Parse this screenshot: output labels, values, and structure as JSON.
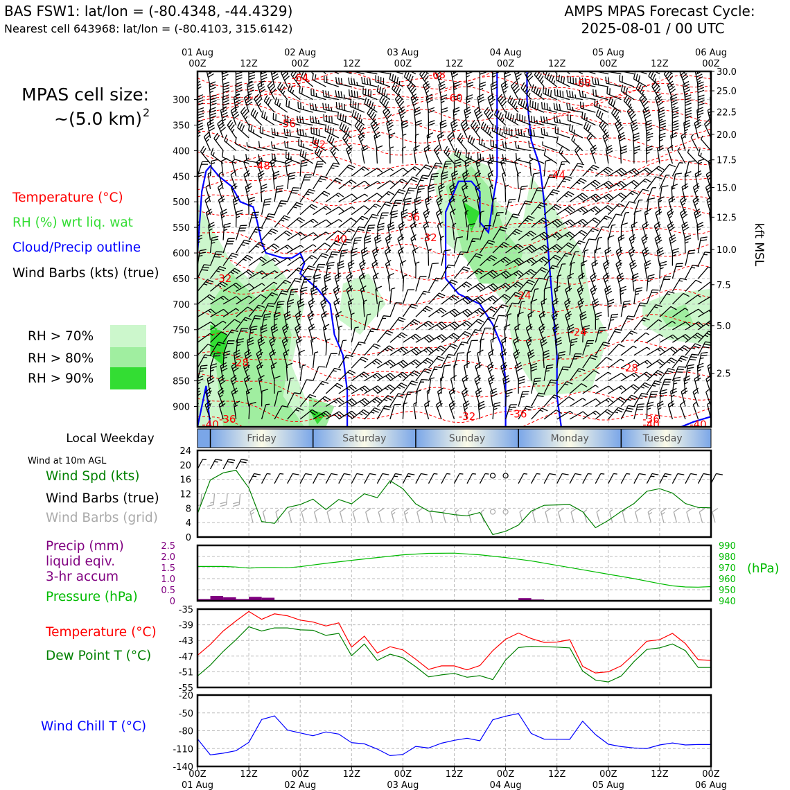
{
  "header": {
    "station_line": "BAS FSW1: lat/lon = (-80.4348, -44.4329)",
    "cell_line": "Nearest cell 643968: lat/lon = (-80.4103, 315.6142)",
    "cycle_title": "AMPS MPAS Forecast Cycle:",
    "cycle_time": "2025-08-01 / 00 UTC"
  },
  "left_panel": {
    "cell_size_label": "MPAS cell size:",
    "cell_size_value": "~(5.0 km)",
    "cell_size_exp": "2",
    "legend": [
      {
        "text": "Temperature (°C)",
        "color": "#ff0000"
      },
      {
        "text": "RH (%) wrt liq. wat",
        "color": "#33dd33"
      },
      {
        "text": "Cloud/Precip outline",
        "color": "#0000ff"
      },
      {
        "text": "Wind Barbs (kts) (true)",
        "color": "#000000"
      }
    ],
    "rh_keys": [
      {
        "text": "RH > 70%",
        "color": "#ccf7cc"
      },
      {
        "text": "RH > 80%",
        "color": "#a0eea0"
      },
      {
        "text": "RH > 90%",
        "color": "#33dd33"
      }
    ]
  },
  "colors": {
    "temperature": "#ff0000",
    "dewpoint": "#008000",
    "wind_speed": "#008000",
    "pressure": "#00bb00",
    "precip": "#800080",
    "wind_chill": "#0000ff",
    "cloud_outline": "#0000ff",
    "grid_barbs": "#aaaaaa"
  },
  "time_axis": {
    "top_dates": [
      "01 Aug",
      "02 Aug",
      "03 Aug",
      "04 Aug",
      "05 Aug",
      "06 Aug"
    ],
    "ticks": [
      "00Z",
      "12Z",
      "00Z",
      "12Z",
      "00Z",
      "12Z",
      "00Z",
      "12Z",
      "00Z",
      "12Z",
      "00Z"
    ],
    "bottom_dates": [
      "01 Aug",
      "02 Aug",
      "03 Aug",
      "04 Aug",
      "05 Aug",
      "06 Aug"
    ]
  },
  "weekday": {
    "label": "Local Weekday",
    "days": [
      "Friday",
      "Saturday",
      "Sunday",
      "Monday",
      "Tuesday"
    ]
  },
  "wind_panel": {
    "title": "Wind at 10m AGL",
    "labels": [
      {
        "text": "Wind Spd (kts)",
        "color": "#008000"
      },
      {
        "text": "Wind Barbs (true)",
        "color": "#000000"
      },
      {
        "text": "Wind Barbs (grid)",
        "color": "#aaaaaa"
      }
    ]
  },
  "precip_panel": {
    "labels": [
      {
        "text": "Precip (mm)",
        "color": "#800080"
      },
      {
        "text": "liquid eqiv.",
        "color": "#800080"
      },
      {
        "text": "3-hr accum",
        "color": "#800080"
      },
      {
        "text": "Pressure (hPa)",
        "color": "#00bb00"
      }
    ],
    "right_unit": "(hPa)"
  },
  "temp_panel": {
    "labels": [
      {
        "text": "Temperature (°C)",
        "color": "#ff0000"
      },
      {
        "text": "Dew Point T (°C)",
        "color": "#008000"
      }
    ]
  },
  "chill_panel": {
    "labels": [
      {
        "text": "Wind Chill T (°C)",
        "color": "#0000ff"
      }
    ]
  },
  "chart_data": [
    {
      "type": "heatmap",
      "name": "upper-air time-height",
      "x_hours": [
        0,
        120
      ],
      "pressure_ticks": [
        300,
        350,
        400,
        450,
        500,
        550,
        600,
        650,
        700,
        750,
        800,
        850,
        900
      ],
      "ylim": [
        940,
        245
      ],
      "right_axis_label": "kft MSL",
      "kft_ticks": [
        {
          "label": "30.0",
          "p": 245
        },
        {
          "label": "25.0",
          "p": 283
        },
        {
          "label": "22.5",
          "p": 324
        },
        {
          "label": "20.0",
          "p": 368
        },
        {
          "label": "17.5",
          "p": 418
        },
        {
          "label": "15.0",
          "p": 472
        },
        {
          "label": "12.5",
          "p": 530
        },
        {
          "label": "10.0",
          "p": 593
        },
        {
          "label": "7.5",
          "p": 662
        },
        {
          "label": "5.0",
          "p": 742
        },
        {
          "label": "2.5",
          "p": 835
        }
      ],
      "temp_labels": [
        {
          "text": "-64",
          "h": 24,
          "p": 258
        },
        {
          "text": "-68",
          "h": 56,
          "p": 252
        },
        {
          "text": "-60",
          "h": 60,
          "p": 297
        },
        {
          "text": "-68",
          "h": 90,
          "p": 268
        },
        {
          "text": "-56",
          "h": 21,
          "p": 347
        },
        {
          "text": "-52",
          "h": 28,
          "p": 388
        },
        {
          "text": "-48",
          "h": 15,
          "p": 430
        },
        {
          "text": "-44",
          "h": 84,
          "p": 448
        },
        {
          "text": "-36",
          "h": 50,
          "p": 530
        },
        {
          "text": "-40",
          "h": 33,
          "p": 573
        },
        {
          "text": "-32",
          "h": 54,
          "p": 570
        },
        {
          "text": "-32",
          "h": 6,
          "p": 650
        },
        {
          "text": "-24",
          "h": 76,
          "p": 683
        },
        {
          "text": "-24",
          "h": 89,
          "p": 755
        },
        {
          "text": "-28",
          "h": 10,
          "p": 815
        },
        {
          "text": "-28",
          "h": 101,
          "p": 825
        },
        {
          "text": "-32",
          "h": 63,
          "p": 920
        },
        {
          "text": "-36",
          "h": 75,
          "p": 915
        },
        {
          "text": "-36",
          "h": 7,
          "p": 925
        },
        {
          "text": "-40",
          "h": 3,
          "p": 935
        },
        {
          "text": "-36",
          "h": 106,
          "p": 925
        },
        {
          "text": "-40",
          "h": 106,
          "p": 935
        },
        {
          "text": "-40",
          "h": 117,
          "p": 935
        }
      ]
    },
    {
      "type": "line",
      "name": "10m wind speed",
      "ylabel": "Wind Spd (kts)",
      "ylim": [
        0,
        24
      ],
      "yticks": [
        0,
        4,
        8,
        12,
        16,
        20,
        24
      ],
      "x_hours": [
        0,
        3,
        6,
        9,
        12,
        15,
        18,
        21,
        24,
        27,
        30,
        33,
        36,
        39,
        42,
        45,
        48,
        51,
        54,
        57,
        60,
        63,
        66,
        69,
        72,
        75,
        78,
        81,
        84,
        87,
        90,
        93,
        96,
        99,
        102,
        105,
        108,
        111,
        114,
        117,
        120
      ],
      "values": [
        6.5,
        15.8,
        17.8,
        18.5,
        13.6,
        4.3,
        3.8,
        8.2,
        9.0,
        10.5,
        7.6,
        10.4,
        9.2,
        12.0,
        10.9,
        15.6,
        13.4,
        9.2,
        7.2,
        6.8,
        6.2,
        5.9,
        6.8,
        0.7,
        1.6,
        3.3,
        7.2,
        8.8,
        8.9,
        9.0,
        7.0,
        2.6,
        4.6,
        7.1,
        9.3,
        12.7,
        13.4,
        12.2,
        9.3,
        8.2,
        8.1
      ]
    },
    {
      "type": "bar",
      "name": "3-hr precip",
      "ylabel": "Precip (mm)",
      "ylim": [
        0,
        2.5
      ],
      "yticks": [
        0,
        0.5,
        1.0,
        1.5,
        2.0,
        2.5
      ],
      "bars": [
        {
          "h": 3,
          "v": 0.08
        },
        {
          "h": 6,
          "v": 0.22
        },
        {
          "h": 9,
          "v": 0.16
        },
        {
          "h": 12,
          "v": 0.08
        },
        {
          "h": 15,
          "v": 0.18
        },
        {
          "h": 18,
          "v": 0.14
        },
        {
          "h": 78,
          "v": 0.12
        },
        {
          "h": 81,
          "v": 0.06
        }
      ]
    },
    {
      "type": "line",
      "name": "pressure",
      "ylabel": "Pressure (hPa)",
      "ylim": [
        940,
        990
      ],
      "yticks": [
        940,
        950,
        960,
        970,
        980,
        990
      ],
      "x_hours": [
        0,
        6,
        9,
        12,
        15,
        18,
        21,
        24,
        30,
        36,
        42,
        48,
        54,
        60,
        66,
        72,
        78,
        84,
        90,
        96,
        102,
        108,
        111,
        114,
        117,
        120
      ],
      "values": [
        971.0,
        971.0,
        970.5,
        969.5,
        970.0,
        970.0,
        969.8,
        970.8,
        973.8,
        976.5,
        979.0,
        981.5,
        982.8,
        983.0,
        981.5,
        979.0,
        976.0,
        972.0,
        968.0,
        964.0,
        960.0,
        955.5,
        953.5,
        952.5,
        952.3,
        952.8
      ]
    },
    {
      "type": "line",
      "name": "temperature and dew point",
      "ylim": [
        -55,
        -35
      ],
      "yticks": [
        -35,
        -39,
        -43,
        -47,
        -51,
        -55
      ],
      "x_hours": [
        0,
        3,
        6,
        9,
        12,
        15,
        18,
        21,
        24,
        27,
        30,
        33,
        36,
        39,
        42,
        45,
        48,
        51,
        54,
        57,
        60,
        63,
        66,
        69,
        72,
        75,
        78,
        81,
        84,
        87,
        90,
        93,
        96,
        99,
        102,
        105,
        108,
        111,
        114,
        117,
        120
      ],
      "series": [
        {
          "name": "Temperature (°C)",
          "values": [
            -46.8,
            -44.0,
            -40.6,
            -38.0,
            -35.6,
            -37.6,
            -36.2,
            -36.7,
            -37.8,
            -38.3,
            -39.3,
            -38.5,
            -44.7,
            -41.9,
            -46.2,
            -44.6,
            -45.4,
            -47.8,
            -50.4,
            -49.5,
            -49.5,
            -50.5,
            -49.4,
            -45.6,
            -42.7,
            -41.1,
            -42.5,
            -43.5,
            -43.4,
            -42.8,
            -49.6,
            -51.3,
            -51.0,
            -49.5,
            -46.5,
            -43.2,
            -42.8,
            -41.2,
            -43.8,
            -47.9,
            -48.1
          ]
        },
        {
          "name": "Dew Point T (°C)",
          "values": [
            -52.1,
            -49.3,
            -45.8,
            -42.8,
            -39.5,
            -40.6,
            -39.8,
            -39.8,
            -40.3,
            -40.4,
            -41.7,
            -41.2,
            -46.9,
            -43.9,
            -48.1,
            -46.5,
            -47.4,
            -49.7,
            -52.3,
            -51.8,
            -51.4,
            -52.4,
            -52.0,
            -53.0,
            -48.0,
            -44.8,
            -44.5,
            -44.6,
            -44.7,
            -44.9,
            -50.8,
            -53.1,
            -53.6,
            -52.1,
            -48.4,
            -45.3,
            -44.9,
            -43.9,
            -45.6,
            -49.9,
            -49.9
          ]
        }
      ]
    },
    {
      "type": "line",
      "name": "wind chill",
      "ylabel": "Wind Chill T (°C)",
      "ylim": [
        -140,
        -20
      ],
      "yticks": [
        -20,
        -50,
        -80,
        -110,
        -140
      ],
      "x_hours": [
        0,
        3,
        6,
        9,
        12,
        15,
        18,
        21,
        24,
        27,
        30,
        33,
        36,
        39,
        42,
        45,
        48,
        51,
        54,
        57,
        60,
        63,
        66,
        69,
        72,
        75,
        78,
        81,
        84,
        87,
        90,
        93,
        96,
        99,
        102,
        105,
        108,
        111,
        114,
        117,
        120
      ],
      "values": [
        -93.6,
        -120.7,
        -117.8,
        -113.5,
        -99.4,
        -61.1,
        -55.0,
        -78.8,
        -83.7,
        -88.4,
        -82.0,
        -85.6,
        -100.0,
        -102.0,
        -110.8,
        -121.8,
        -119.9,
        -106.3,
        -109.0,
        -101.0,
        -96.1,
        -92.6,
        -96.9,
        -61.6,
        -55.7,
        -51.1,
        -84.6,
        -94.1,
        -94.3,
        -94.4,
        -63.9,
        -86.4,
        -102.6,
        -106.7,
        -108.9,
        -109.8,
        -103.9,
        -100.5,
        -103.9,
        -103.2,
        -103.2
      ]
    }
  ]
}
